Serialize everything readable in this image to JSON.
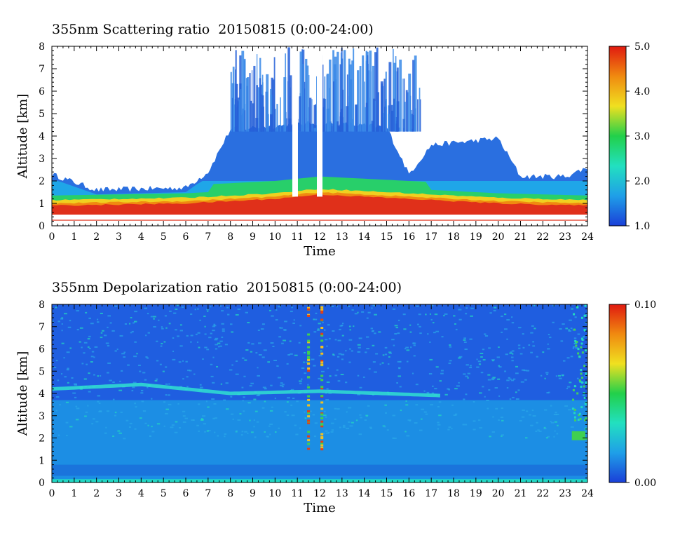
{
  "chart_data": [
    {
      "type": "heatmap",
      "title": "355nm Scattering ratio  20150815 (0:00-24:00)",
      "xlabel": "Time",
      "ylabel": "Altitude [km]",
      "xlim": [
        0,
        24
      ],
      "ylim": [
        0,
        8
      ],
      "x_ticks": [
        "0",
        "1",
        "2",
        "3",
        "4",
        "5",
        "6",
        "7",
        "8",
        "9",
        "10",
        "11",
        "12",
        "13",
        "14",
        "15",
        "16",
        "17",
        "18",
        "19",
        "20",
        "21",
        "22",
        "23",
        "24"
      ],
      "y_ticks": [
        "0",
        "1",
        "2",
        "3",
        "4",
        "5",
        "6",
        "7",
        "8"
      ],
      "colorbar": {
        "min": 1.0,
        "max": 5.0,
        "ticks": [
          "1.0",
          "2.0",
          "3.0",
          "4.0",
          "5.0"
        ],
        "colors": [
          "#1a3fd8",
          "#1f9fe8",
          "#22e0c0",
          "#22d04a",
          "#f0e020",
          "#f08a10",
          "#e01a10"
        ]
      },
      "features": {
        "boundary_layer_top_km": [
          [
            0,
            2.3
          ],
          [
            2,
            1.6
          ],
          [
            6,
            1.7
          ],
          [
            7,
            2.4
          ],
          [
            8,
            4.3
          ],
          [
            12,
            4.6
          ],
          [
            15,
            4.4
          ],
          [
            16,
            2.3
          ],
          [
            17,
            3.6
          ],
          [
            20,
            3.9
          ],
          [
            21,
            2.2
          ],
          [
            23,
            2.2
          ],
          [
            24,
            2.6
          ]
        ],
        "high_scatter_layer_km": [
          [
            0,
            0.8
          ],
          [
            6,
            0.9
          ],
          [
            10,
            1.1
          ],
          [
            12,
            1.3
          ],
          [
            16,
            1.1
          ],
          [
            20,
            0.9
          ],
          [
            24,
            0.8
          ]
        ],
        "clear_columns_hours": [
          10.9,
          12.0
        ],
        "ground_line_km": 0.25
      }
    },
    {
      "type": "heatmap",
      "title": "355nm Depolarization ratio  20150815 (0:00-24:00)",
      "xlabel": "Time",
      "ylabel": "Altitude [km]",
      "xlim": [
        0,
        24
      ],
      "ylim": [
        0,
        8
      ],
      "x_ticks": [
        "0",
        "1",
        "2",
        "3",
        "4",
        "5",
        "6",
        "7",
        "8",
        "9",
        "10",
        "11",
        "12",
        "13",
        "14",
        "15",
        "16",
        "17",
        "18",
        "19",
        "20",
        "21",
        "22",
        "23",
        "24"
      ],
      "y_ticks": [
        "0",
        "1",
        "2",
        "3",
        "4",
        "5",
        "6",
        "7",
        "8"
      ],
      "colorbar": {
        "min": 0.0,
        "max": 0.1,
        "ticks": [
          "0.00",
          "0.10"
        ],
        "colors": [
          "#1a3fd8",
          "#1f9fe8",
          "#22e0c0",
          "#22d04a",
          "#f0e020",
          "#f08a10",
          "#e01a10"
        ]
      },
      "features": {
        "elevated_layer_km": [
          [
            0,
            4.2
          ],
          [
            4,
            4.4
          ],
          [
            8,
            4.0
          ],
          [
            12,
            4.1
          ],
          [
            17.5,
            3.9
          ]
        ],
        "noisy_columns_hours": [
          11.5,
          12.1
        ],
        "high_depol_end_hours": [
          23.3,
          23.9
        ]
      }
    }
  ]
}
